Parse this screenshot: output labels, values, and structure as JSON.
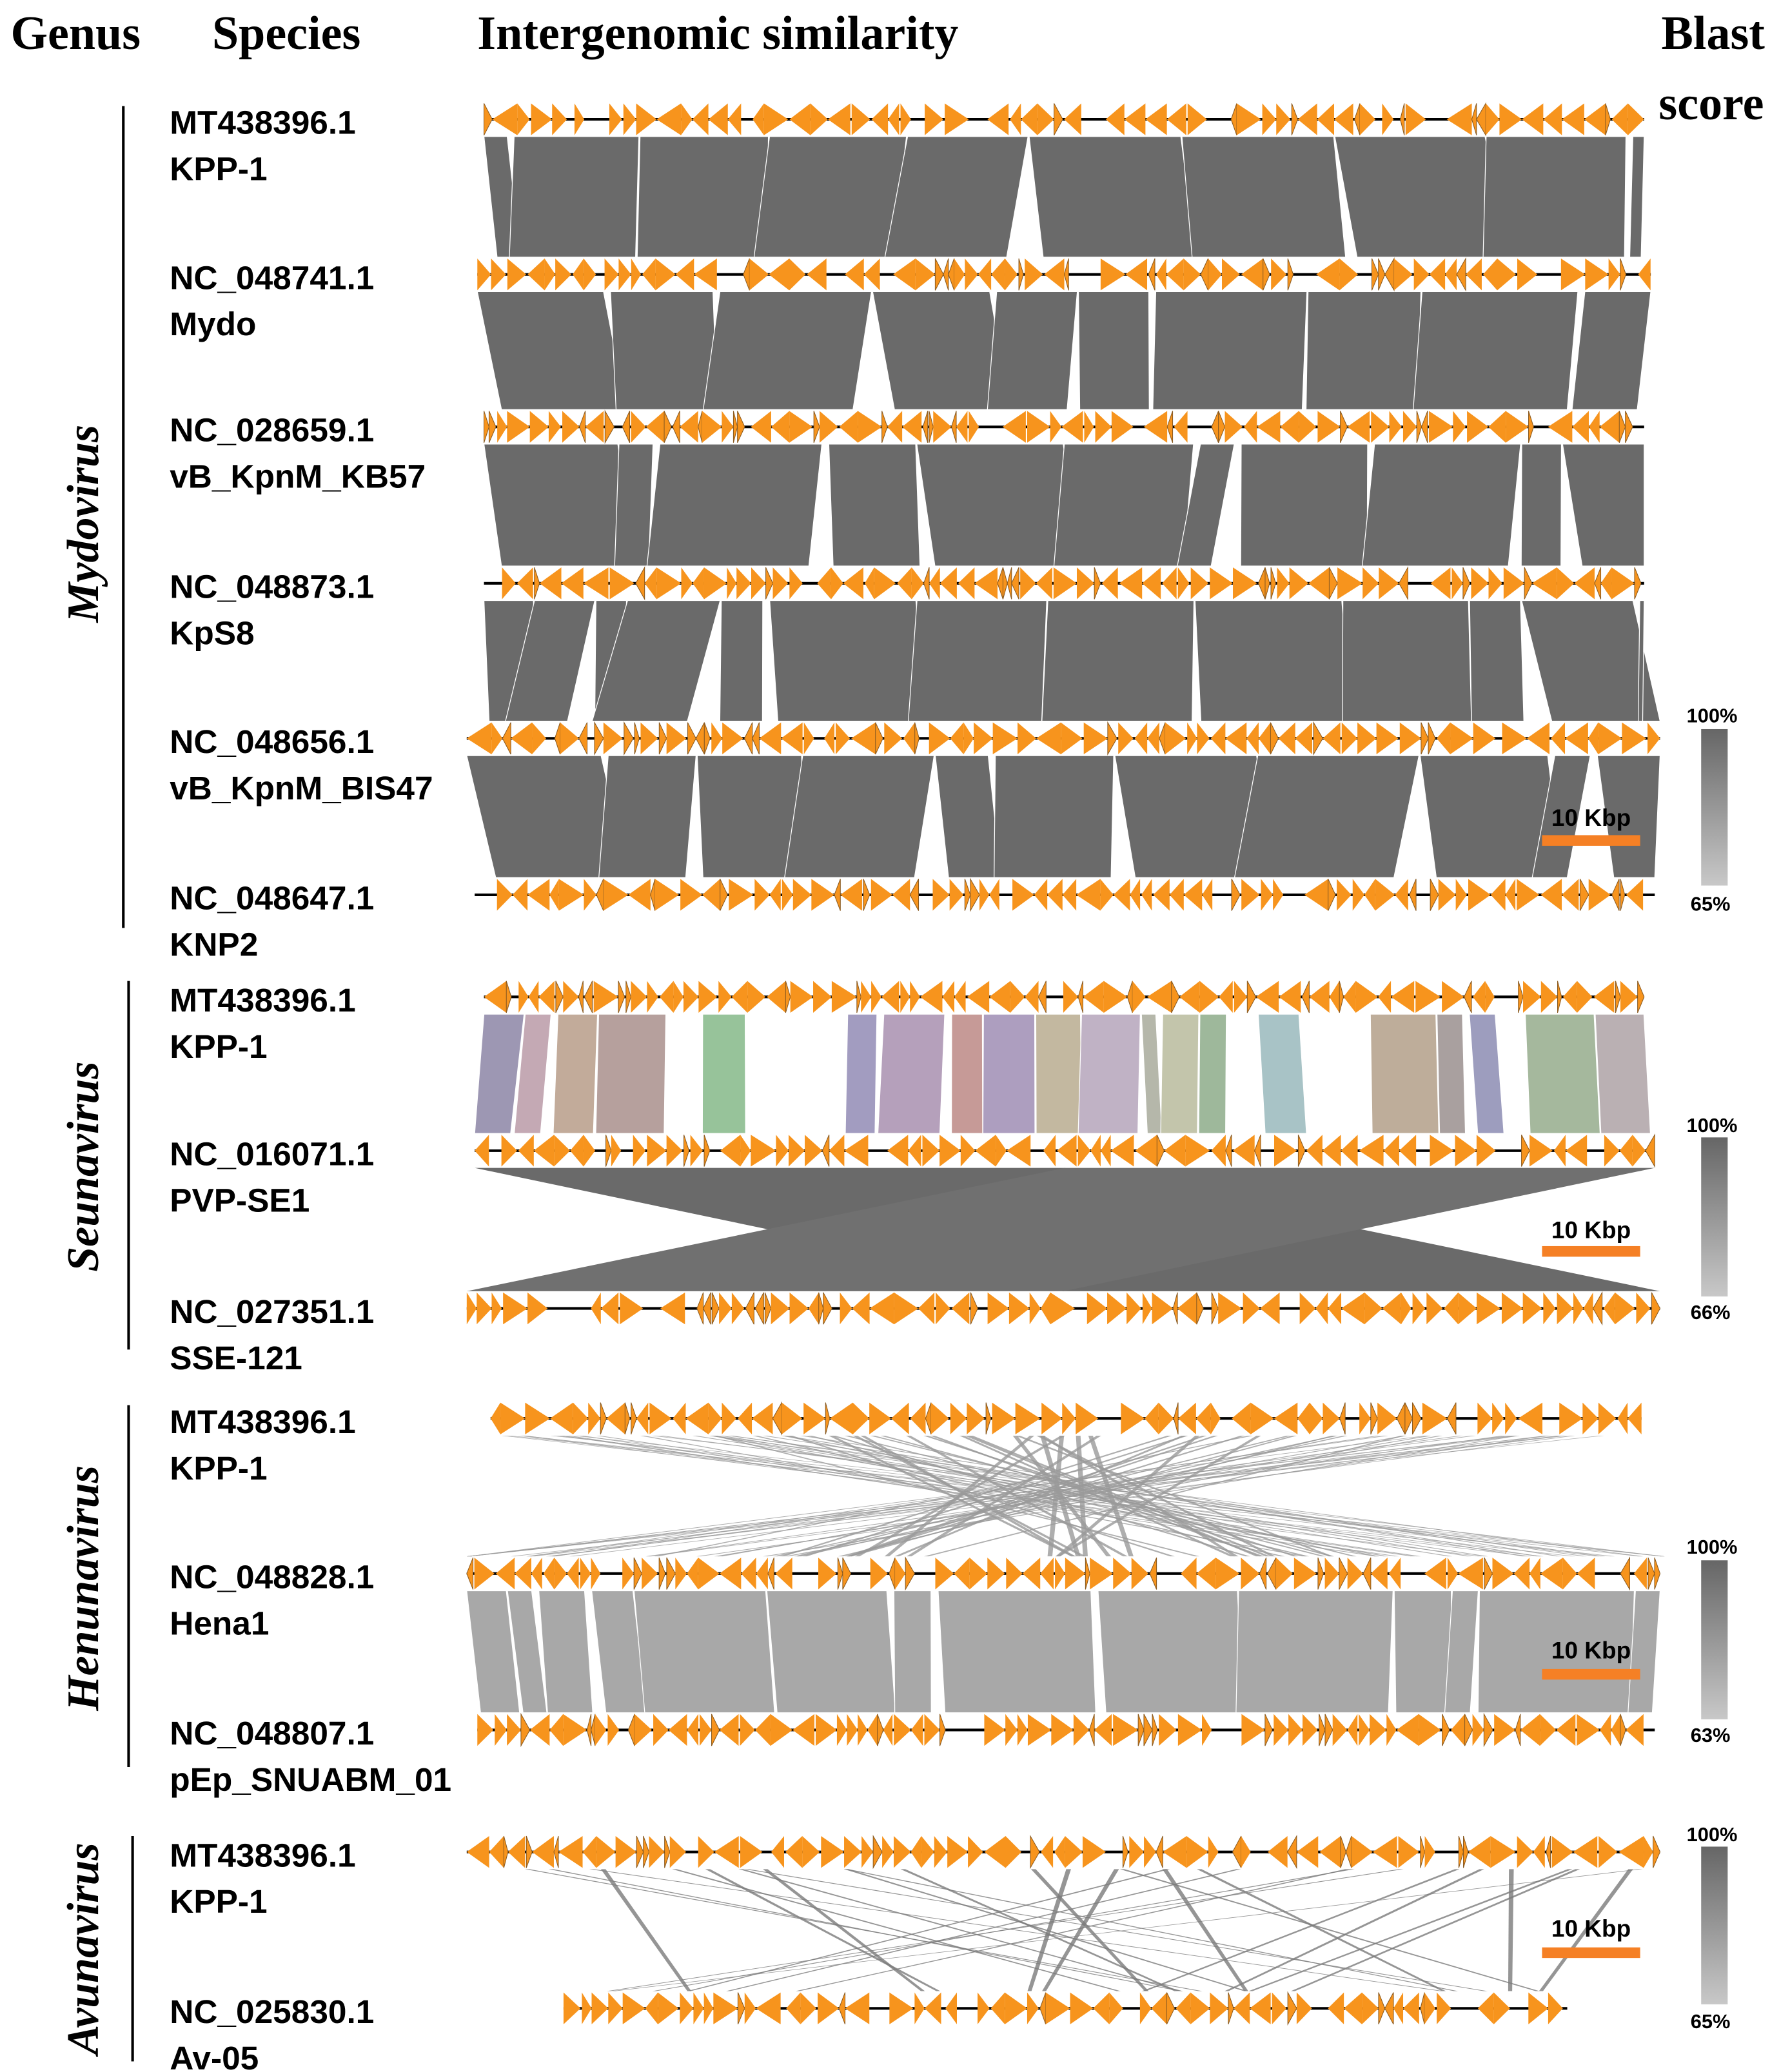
{
  "header": {
    "genus": "Genus",
    "species": "Species",
    "similarity": "Intergenomic similarity",
    "blast_line1": "Blast",
    "blast_line2": "score"
  },
  "colors": {
    "gene": "#f7941d",
    "scale_bar": "#f58025",
    "band_dark": "#6a6a6a",
    "band_light": "#b4b4b4"
  },
  "scale_label": "10 Kbp",
  "groups": [
    {
      "genus": "Mydovirus",
      "legend": {
        "max": "100%",
        "min": "65%"
      },
      "tracks": [
        {
          "accession": "MT438396.1",
          "name": "KPP-1"
        },
        {
          "accession": "NC_048741.1",
          "name": "Mydo"
        },
        {
          "accession": "NC_028659.1",
          "name": "vB_KpnM_KB57"
        },
        {
          "accession": "NC_048873.1",
          "name": "KpS8"
        },
        {
          "accession": "NC_048656.1",
          "name": "vB_KpnM_BIS47"
        },
        {
          "accession": "NC_048647.1",
          "name": "KNP2"
        }
      ]
    },
    {
      "genus": "Seunavirus",
      "legend": {
        "max": "100%",
        "min": "66%"
      },
      "tracks": [
        {
          "accession": "MT438396.1",
          "name": "KPP-1"
        },
        {
          "accession": "NC_016071.1",
          "name": "PVP-SE1"
        },
        {
          "accession": "NC_027351.1",
          "name": "SSE-121"
        }
      ]
    },
    {
      "genus": "Henunavirus",
      "legend": {
        "max": "100%",
        "min": "63%"
      },
      "tracks": [
        {
          "accession": "MT438396.1",
          "name": "KPP-1"
        },
        {
          "accession": "NC_048828.1",
          "name": "Hena1"
        },
        {
          "accession": "NC_048807.1",
          "name": "pEp_SNUABM_01"
        }
      ]
    },
    {
      "genus": "Avunavirus",
      "legend": {
        "max": "100%",
        "min": "65%"
      },
      "tracks": [
        {
          "accession": "MT438396.1",
          "name": "KPP-1"
        },
        {
          "accession": "NC_025830.1",
          "name": "Av-05"
        }
      ]
    }
  ]
}
